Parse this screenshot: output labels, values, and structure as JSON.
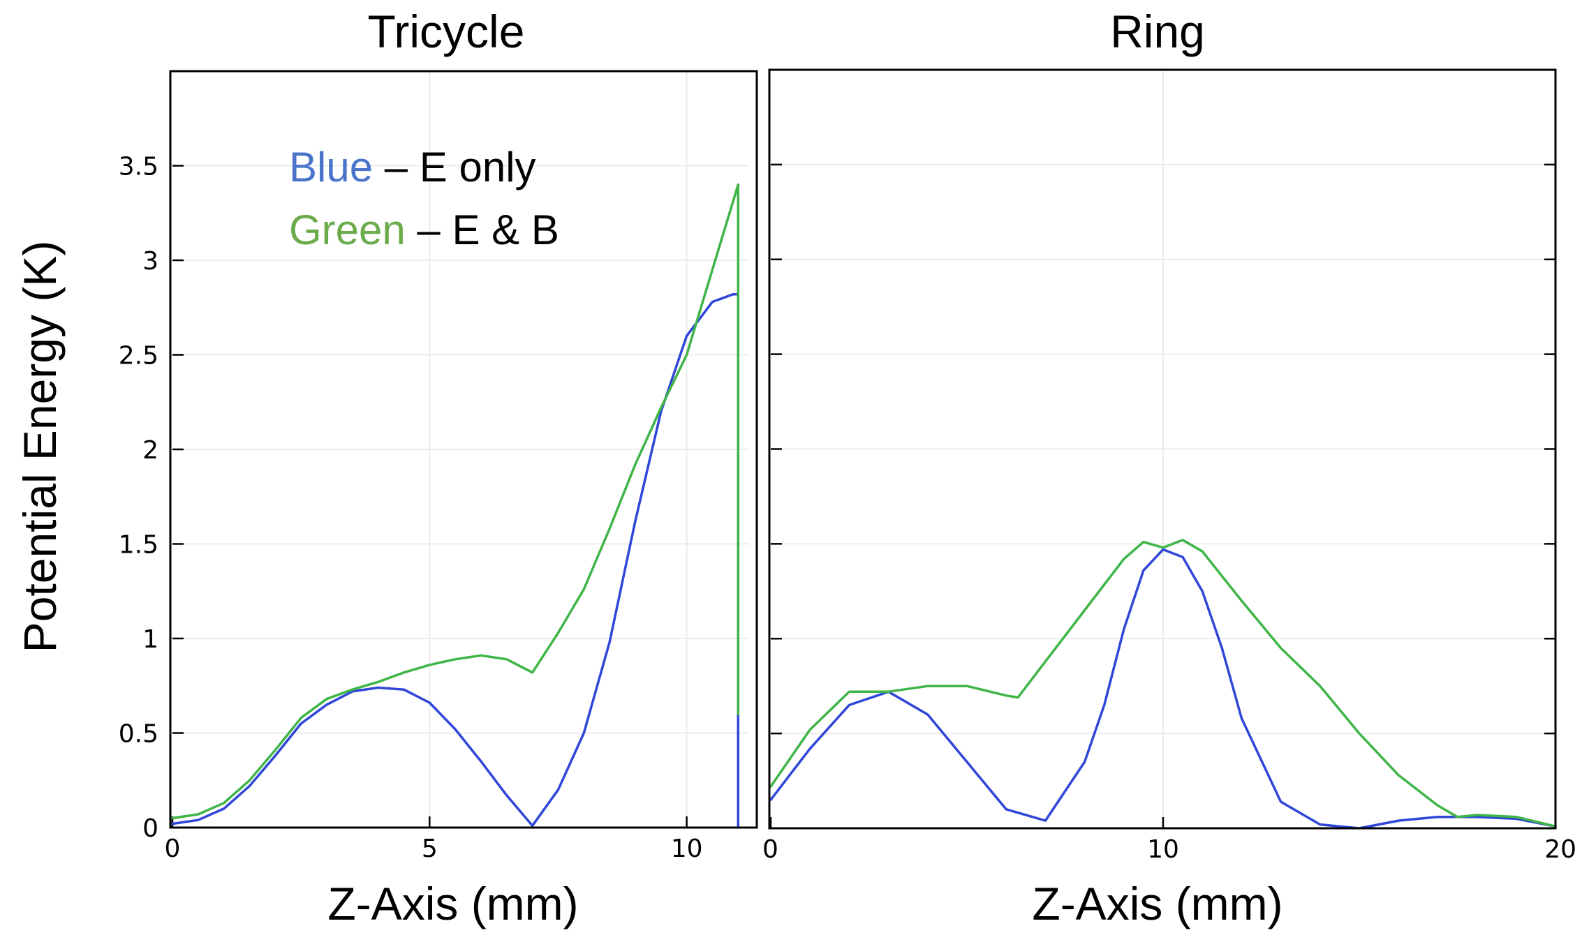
{
  "colors": {
    "blue": "#2f46d9",
    "green": "#3fb548",
    "legend_blue": "#4a74c9",
    "legend_green": "#6aab4a"
  },
  "y_axis_label": "Potential Energy (K)",
  "legend": {
    "blue_word": "Blue",
    "blue_rest": " – E only",
    "green_word": "Green",
    "green_rest": " – E & B"
  },
  "chart_data": [
    {
      "type": "line",
      "title": "Tricycle",
      "xlabel": "Z-Axis (mm)",
      "ylabel": "Potential Energy (K)",
      "xlim": [
        0,
        11.2
      ],
      "ylim": [
        0,
        4
      ],
      "x_ticks": [
        0,
        5,
        10
      ],
      "x_tick_labels": [
        "0",
        "5",
        "10"
      ],
      "y_ticks": [
        0,
        0.5,
        1,
        1.5,
        2,
        2.5,
        3,
        3.5
      ],
      "y_tick_labels": [
        "0",
        "0.5",
        "1",
        "1.5",
        "2",
        "2.5",
        "3",
        "3.5"
      ],
      "grid": true,
      "series": [
        {
          "color_key": "blue",
          "x": [
            0,
            0.5,
            1,
            1.5,
            2,
            2.5,
            3,
            3.5,
            4,
            4.5,
            5,
            5.5,
            6,
            6.5,
            7,
            7.5,
            8,
            8.5,
            9,
            9.5,
            10,
            10.5,
            10.9,
            11.0,
            11.0
          ],
          "y": [
            0.02,
            0.04,
            0.1,
            0.22,
            0.38,
            0.55,
            0.65,
            0.72,
            0.74,
            0.73,
            0.66,
            0.52,
            0.35,
            0.17,
            0.01,
            0.2,
            0.5,
            0.98,
            1.62,
            2.2,
            2.6,
            2.78,
            2.82,
            2.82,
            0.0
          ]
        },
        {
          "color_key": "green",
          "x": [
            0,
            0.5,
            1,
            1.5,
            2,
            2.5,
            3,
            3.5,
            4,
            4.5,
            5,
            5.5,
            6,
            6.5,
            7,
            7.5,
            8,
            8.5,
            9,
            9.5,
            10,
            10.5,
            11.0,
            11.0
          ],
          "y": [
            0.05,
            0.07,
            0.13,
            0.25,
            0.41,
            0.58,
            0.68,
            0.73,
            0.77,
            0.82,
            0.86,
            0.89,
            0.91,
            0.89,
            0.82,
            1.03,
            1.26,
            1.58,
            1.92,
            2.22,
            2.5,
            2.95,
            3.4,
            0.6
          ]
        }
      ]
    },
    {
      "type": "line",
      "title": "Ring",
      "xlabel": "Z-Axis (mm)",
      "xlim": [
        0,
        20
      ],
      "ylim": [
        0,
        4
      ],
      "x_ticks": [
        0,
        10,
        20
      ],
      "x_tick_labels": [
        "0",
        "10",
        "20"
      ],
      "y_ticks": [
        0,
        0.5,
        1,
        1.5,
        2,
        2.5,
        3,
        3.5
      ],
      "grid": true,
      "series": [
        {
          "color_key": "blue",
          "x": [
            0,
            1,
            2,
            3,
            4,
            5,
            6,
            7,
            8,
            8.5,
            9,
            9.5,
            10,
            10.5,
            11,
            11.5,
            12,
            13,
            14,
            15,
            16,
            17,
            18,
            19,
            20
          ],
          "y": [
            0.15,
            0.42,
            0.65,
            0.72,
            0.6,
            0.35,
            0.1,
            0.04,
            0.35,
            0.65,
            1.05,
            1.36,
            1.47,
            1.43,
            1.25,
            0.95,
            0.58,
            0.14,
            0.02,
            0.0,
            0.04,
            0.06,
            0.06,
            0.05,
            0.01
          ]
        },
        {
          "color_key": "green",
          "x": [
            0,
            1,
            2,
            3,
            4,
            5,
            6,
            6.3,
            7,
            8,
            9,
            9.5,
            10,
            10.5,
            11,
            12,
            13,
            14,
            15,
            16,
            17,
            17.5,
            18,
            19,
            20
          ],
          "y": [
            0.22,
            0.52,
            0.72,
            0.72,
            0.75,
            0.75,
            0.7,
            0.69,
            0.88,
            1.15,
            1.42,
            1.51,
            1.48,
            1.52,
            1.46,
            1.2,
            0.95,
            0.75,
            0.5,
            0.28,
            0.12,
            0.06,
            0.07,
            0.06,
            0.01
          ]
        }
      ]
    }
  ]
}
